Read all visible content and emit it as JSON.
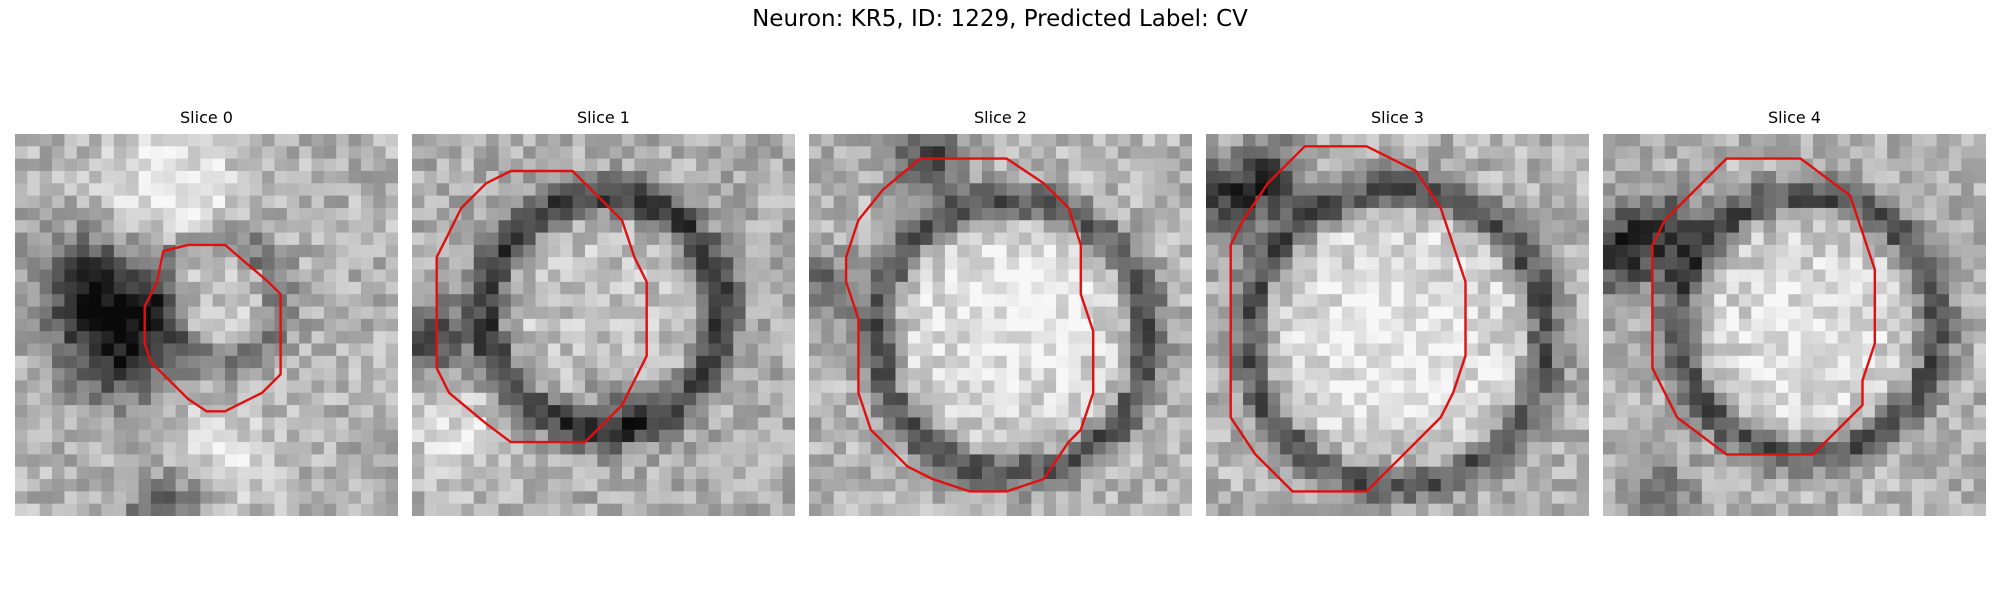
{
  "figure": {
    "title": "Neuron: KR5, ID: 1229, Predicted Label: CV",
    "contour_color": "#e01010",
    "colormap": "gray",
    "slices": [
      {
        "label": "Slice 0"
      },
      {
        "label": "Slice 1"
      },
      {
        "label": "Slice 2"
      },
      {
        "label": "Slice 3"
      },
      {
        "label": "Slice 4"
      }
    ]
  }
}
